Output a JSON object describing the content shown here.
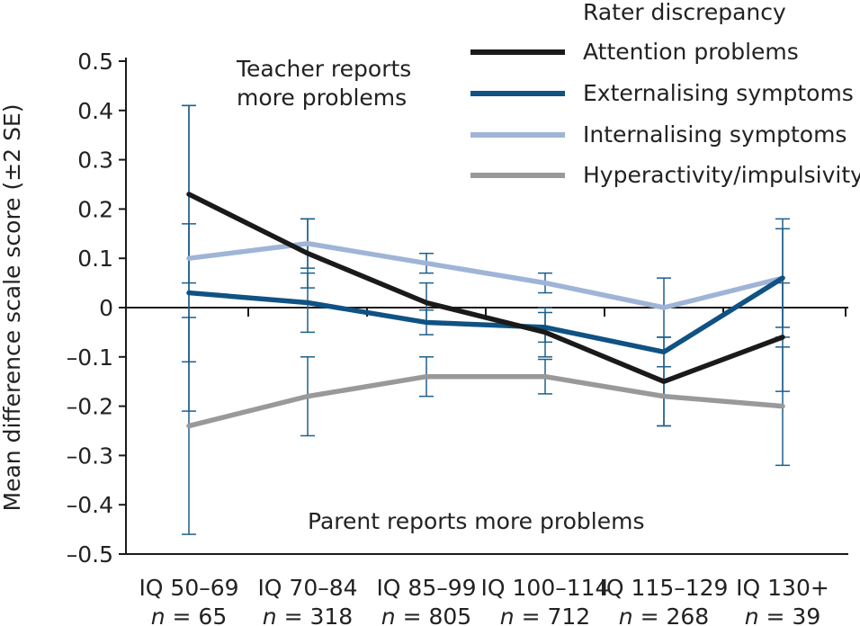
{
  "chart_data": {
    "type": "line",
    "ylabel": "Mean difference scale score (±2 SE)",
    "ylim": [
      -0.5,
      0.5
    ],
    "yticks": [
      0.5,
      0.4,
      0.3,
      0.2,
      0.1,
      0,
      -0.1,
      -0.2,
      -0.3,
      -0.4,
      -0.5
    ],
    "ytick_labels": [
      "0.5",
      "0.4",
      "0.3",
      "0.2",
      "0.1",
      "0",
      "–0.1",
      "–0.2",
      "–0.3",
      "–0.4",
      "–0.5"
    ],
    "categories": [
      {
        "label": "IQ 50–69",
        "n_prefix": "n",
        "n_value": "= 65"
      },
      {
        "label": "IQ 70–84",
        "n_prefix": "n",
        "n_value": "= 318"
      },
      {
        "label": "IQ 85–99",
        "n_prefix": "n",
        "n_value": "= 805"
      },
      {
        "label": "IQ 100–114",
        "n_prefix": "n",
        "n_value": "= 712"
      },
      {
        "label": "IQ 115–129",
        "n_prefix": "n",
        "n_value": "= 268"
      },
      {
        "label": "IQ 130+",
        "n_prefix": "n",
        "n_value": "= 39"
      }
    ],
    "annotations": {
      "top": [
        "Teacher reports",
        "more problems"
      ],
      "bottom": "Parent reports more problems"
    },
    "legend_title": "Rater discrepancy",
    "series": [
      {
        "name": "Attention problems",
        "color": "#1a1a1a",
        "values": [
          0.23,
          0.11,
          0.01,
          -0.05,
          -0.15,
          -0.06
        ],
        "errors": [
          0.18,
          0.07,
          0.04,
          0.05,
          0.09,
          0.11
        ]
      },
      {
        "name": "Externalising symptoms",
        "color": "#0f5283",
        "values": [
          0.03,
          0.01,
          -0.03,
          -0.04,
          -0.09,
          0.06
        ],
        "errors": [
          0.14,
          0.06,
          0.025,
          0.03,
          0.03,
          0.12
        ]
      },
      {
        "name": "Internalising symptoms",
        "color": "#9fb4d6",
        "values": [
          0.1,
          0.13,
          0.09,
          0.05,
          0.0,
          0.06
        ],
        "errors": [
          0.31,
          0.05,
          0.02,
          0.02,
          0.06,
          0.1
        ]
      },
      {
        "name": "Hyperactivity/impulsivity",
        "color": "#999999",
        "values": [
          -0.24,
          -0.18,
          -0.14,
          -0.14,
          -0.18,
          -0.2
        ],
        "errors": [
          0.22,
          0.08,
          0.04,
          0.035,
          0.06,
          0.12
        ]
      }
    ],
    "errorbar_color": "#1f5f8b"
  }
}
